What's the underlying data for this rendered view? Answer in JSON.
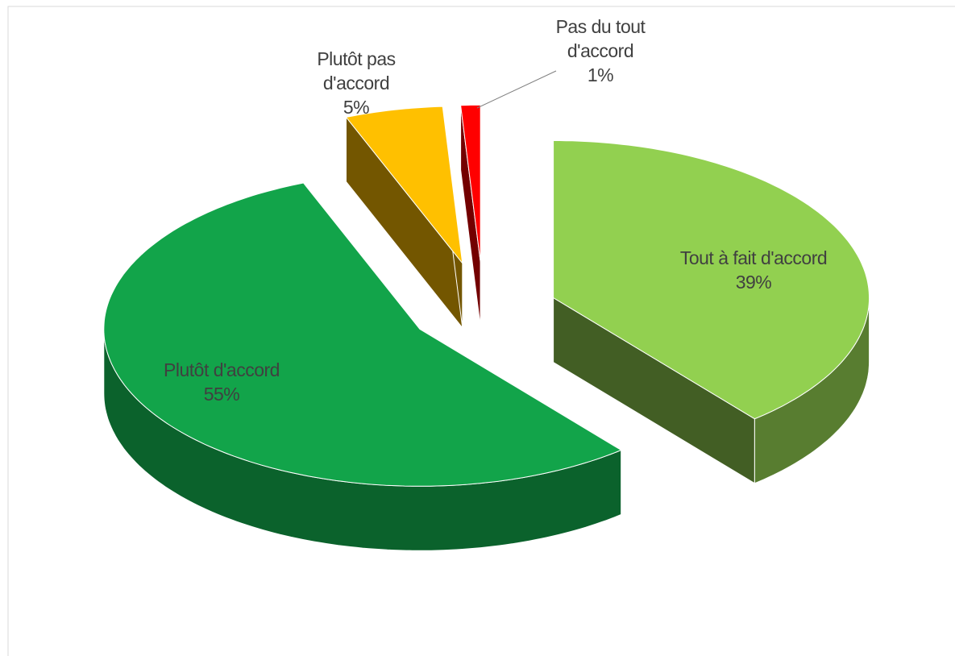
{
  "chart_data": {
    "type": "pie",
    "categories": [
      "Tout à fait d'accord",
      "Plutôt d'accord",
      "Plutôt pas d'accord",
      "Pas du tout d'accord"
    ],
    "values": [
      39,
      55,
      5,
      1
    ],
    "value_labels": [
      "39%",
      "55%",
      "5%",
      "1%"
    ],
    "colors": [
      "#92d050",
      "#12a44a",
      "#ffc000",
      "#ff0000"
    ]
  }
}
